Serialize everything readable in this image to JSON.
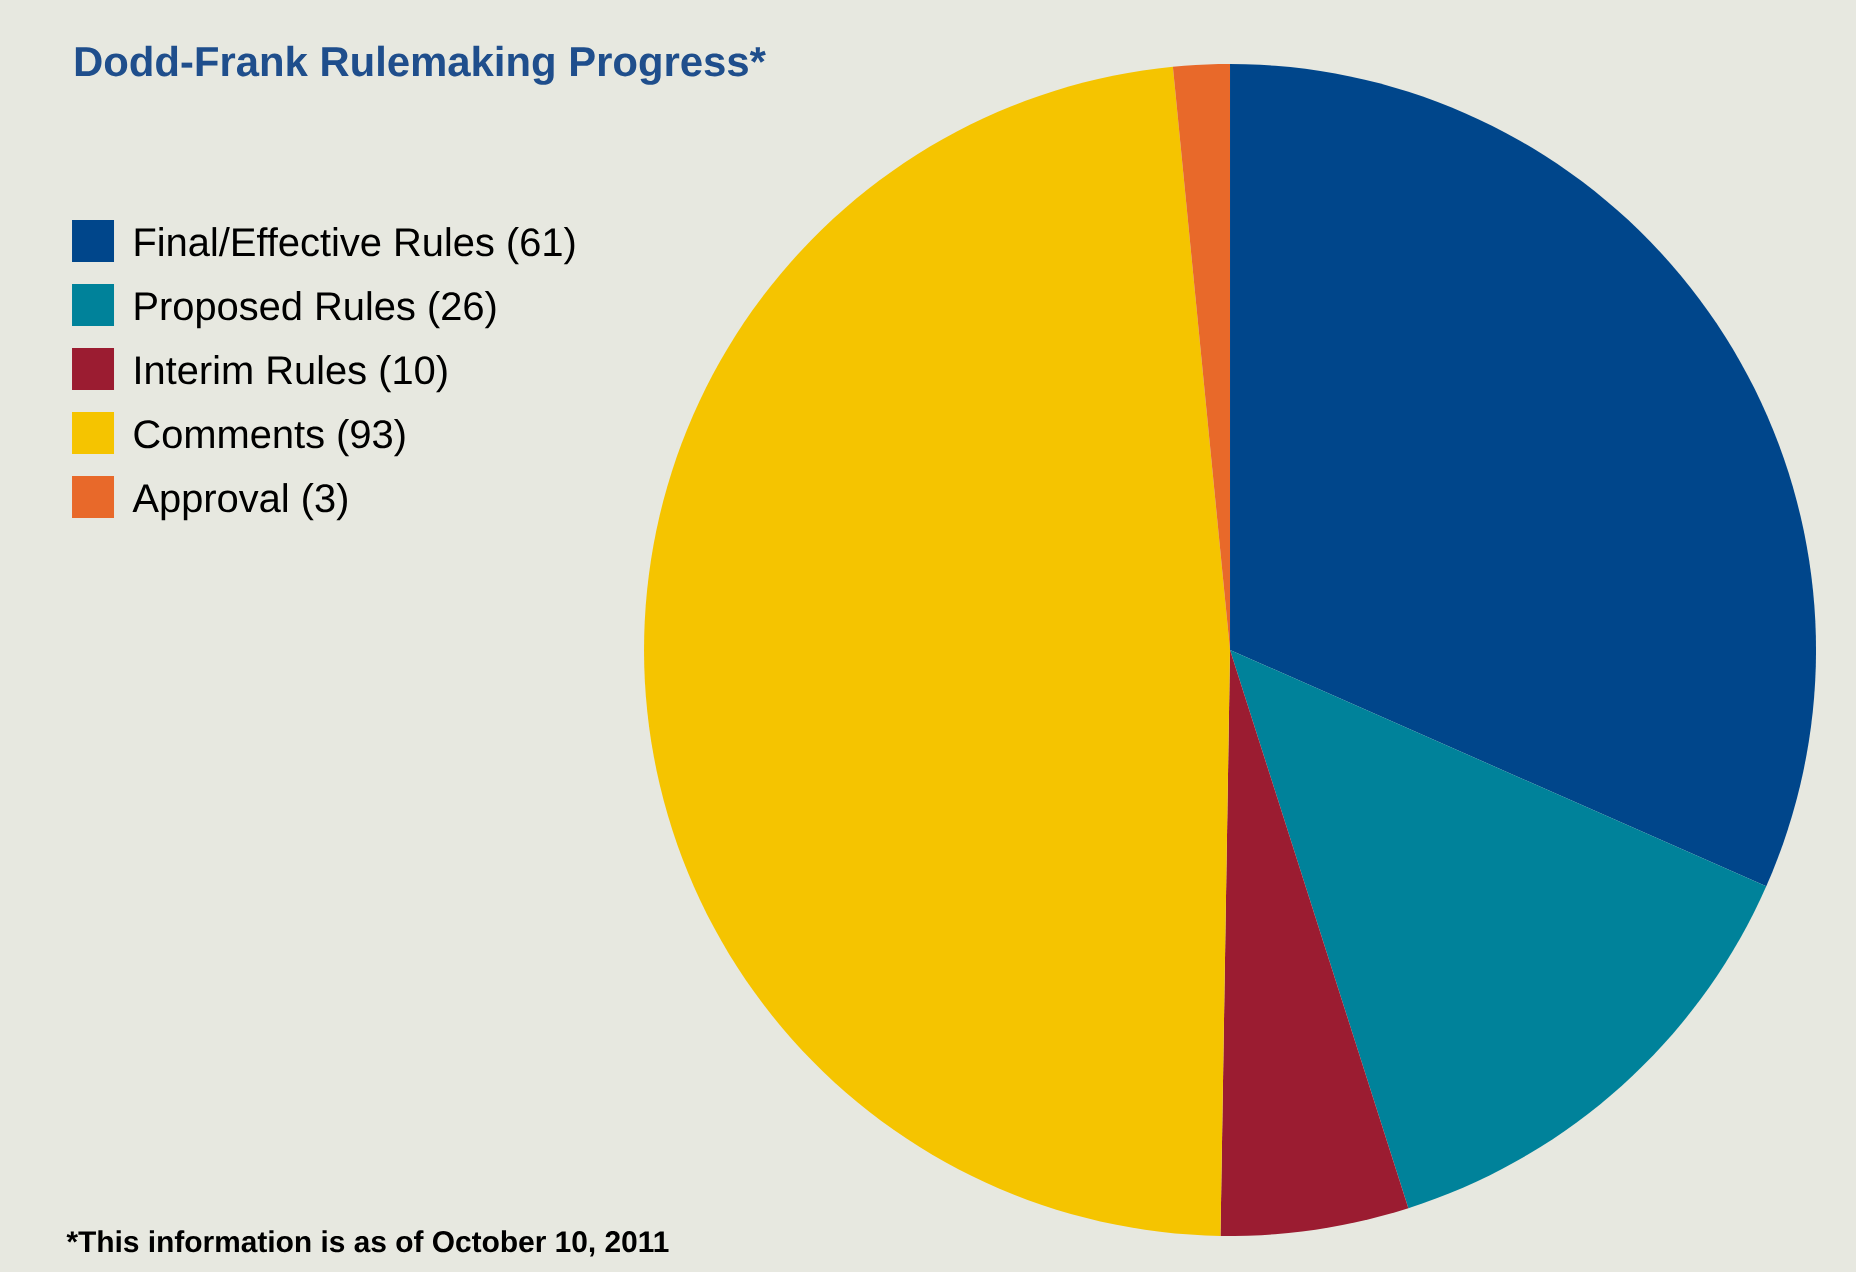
{
  "chart_data": {
    "type": "pie",
    "title": "Dodd-Frank Rulemaking Progress*",
    "categories": [
      "Final/Effective Rules (61)",
      "Proposed Rules (26)",
      "Interim Rules (10)",
      "Comments (93)",
      "Approval (3)"
    ],
    "values": [
      61,
      26,
      10,
      93,
      3
    ],
    "colors": [
      "#00468b",
      "#00829a",
      "#9b1c31",
      "#f5c400",
      "#e8692a"
    ],
    "legend": "top left",
    "annotations": [
      "*This information is as of October 10, 2011"
    ]
  }
}
